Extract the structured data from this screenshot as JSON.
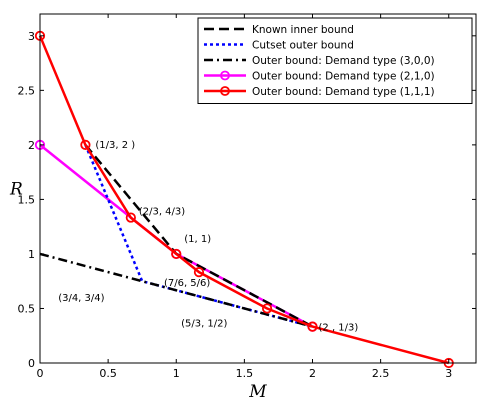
{
  "chart_data": {
    "type": "line",
    "xlabel": "M",
    "ylabel": "R",
    "xlim": [
      0,
      3.2
    ],
    "ylim": [
      0,
      3.2
    ],
    "xticks": [
      "0",
      "0.5",
      "1",
      "1.5",
      "2",
      "2.5",
      "3"
    ],
    "yticks": [
      "0",
      "0.5",
      "1",
      "1.5",
      "2",
      "2.5",
      "3"
    ],
    "legend_position": "top-right",
    "series": [
      {
        "name": "Known inner bound",
        "style": "dashed",
        "color": "#000000",
        "marker": "none",
        "points": [
          [
            0.3333,
            2
          ],
          [
            1,
            1
          ],
          [
            2,
            0.3333
          ]
        ]
      },
      {
        "name": "Cutset outer bound",
        "style": "dotted",
        "color": "#0000ff",
        "marker": "none",
        "points": [
          [
            0.3333,
            2
          ],
          [
            0.75,
            0.75
          ],
          [
            2,
            0.3333
          ]
        ]
      },
      {
        "name": "Outer bound: Demand type (3,0,0)",
        "style": "dashdot",
        "color": "#000000",
        "marker": "none",
        "points": [
          [
            0,
            1
          ],
          [
            0.75,
            0.75
          ],
          [
            2,
            0.3333
          ]
        ]
      },
      {
        "name": "Outer bound: Demand type (2,1,0)",
        "style": "solid",
        "color": "#ff00ff",
        "marker": "circle",
        "points": [
          [
            0,
            2
          ],
          [
            1,
            1
          ],
          [
            2,
            0.3333
          ]
        ]
      },
      {
        "name": "Outer bound: Demand type (1,1,1)",
        "style": "solid",
        "color": "#ff0000",
        "marker": "circle",
        "points": [
          [
            0,
            3
          ],
          [
            0.3333,
            2
          ],
          [
            0.6667,
            1.3333
          ],
          [
            1,
            1
          ],
          [
            1.1667,
            0.8333
          ],
          [
            1.6667,
            0.5
          ],
          [
            2,
            0.3333
          ],
          [
            3,
            0
          ]
        ]
      }
    ],
    "annotations": [
      {
        "text": "(1/3, 2  )",
        "x": 0.3333,
        "y": 2
      },
      {
        "text": "(2/3, 4/3)",
        "x": 0.6667,
        "y": 1.3333
      },
      {
        "text": "(1, 1)",
        "x": 1,
        "y": 1
      },
      {
        "text": "(7/6, 5/6)",
        "x": 1.1667,
        "y": 0.8333
      },
      {
        "text": "(3/4, 3/4)",
        "x": 0.75,
        "y": 0.75
      },
      {
        "text": "(5/3, 1/2)",
        "x": 1.6667,
        "y": 0.5
      },
      {
        "text": "(2  , 1/3)",
        "x": 2,
        "y": 0.3333
      }
    ]
  }
}
